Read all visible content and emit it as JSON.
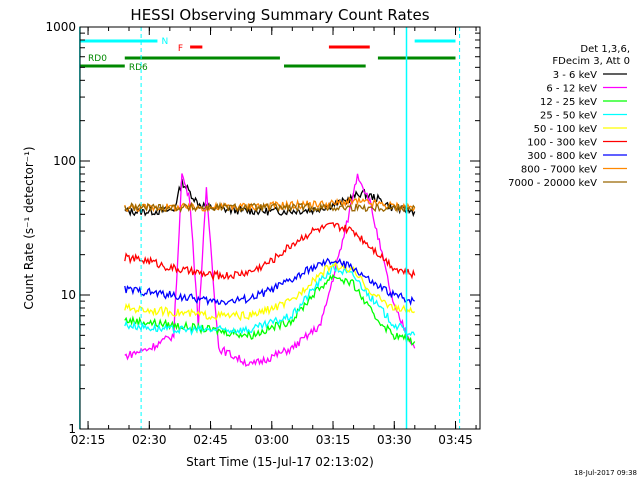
{
  "chart_data": {
    "type": "line",
    "title": "HESSI Observing Summary Count Rates",
    "xlabel": "Start Time (15-Jul-17 02:13:02)",
    "ylabel": "Count Rate (s⁻¹ detector⁻¹)",
    "y_scale": "log",
    "ylim": [
      1,
      1000
    ],
    "xlim": [
      "02:13:02",
      "03:51:00"
    ],
    "x_ticks": [
      "02:15",
      "02:30",
      "02:45",
      "03:00",
      "03:15",
      "03:30",
      "03:45"
    ],
    "y_ticks": [
      "1",
      "10",
      "100",
      "1000"
    ],
    "legend_header": [
      "Det 1,3,6,",
      "FDecim 3, Att 0"
    ],
    "legend_position": "right",
    "timestamp": "18-Jul-2017 09:38",
    "series": [
      {
        "name": "3 - 6 keV",
        "color": "#000000",
        "x": [
          "02:24",
          "02:30",
          "02:36",
          "02:38",
          "02:42",
          "02:45",
          "02:50",
          "03:00",
          "03:10",
          "03:18",
          "03:22",
          "03:26",
          "03:30",
          "03:35"
        ],
        "y": [
          42,
          42,
          43,
          70,
          48,
          45,
          43,
          42,
          43,
          50,
          58,
          52,
          44,
          42
        ]
      },
      {
        "name": "6 - 12 keV",
        "color": "#ff00ff",
        "x": [
          "02:24",
          "02:30",
          "02:36",
          "02:38",
          "02:40",
          "02:42",
          "02:44",
          "02:47",
          "02:55",
          "03:05",
          "03:12",
          "03:18",
          "03:21",
          "03:24",
          "03:30",
          "03:35"
        ],
        "y": [
          3.5,
          4,
          5,
          80,
          50,
          6,
          60,
          4,
          3,
          4,
          6,
          30,
          80,
          50,
          8,
          4
        ]
      },
      {
        "name": "12 - 25 keV",
        "color": "#00ff00",
        "x": [
          "02:24",
          "02:35",
          "02:45",
          "02:55",
          "03:05",
          "03:10",
          "03:15",
          "03:20",
          "03:25",
          "03:30",
          "03:35"
        ],
        "y": [
          6.5,
          6,
          5.5,
          5,
          6.5,
          10,
          14,
          12,
          7,
          5,
          4.5
        ]
      },
      {
        "name": "25 - 50 keV",
        "color": "#00ffff",
        "x": [
          "02:24",
          "02:35",
          "02:45",
          "02:55",
          "03:05",
          "03:10",
          "03:15",
          "03:20",
          "03:25",
          "03:30",
          "03:35"
        ],
        "y": [
          6,
          5.5,
          5.5,
          5.5,
          7,
          11,
          16,
          14,
          9,
          6,
          5
        ]
      },
      {
        "name": "50 - 100 keV",
        "color": "#ffff00",
        "x": [
          "02:24",
          "02:35",
          "02:45",
          "02:55",
          "03:05",
          "03:10",
          "03:15",
          "03:20",
          "03:25",
          "03:30",
          "03:35"
        ],
        "y": [
          8,
          7.5,
          7,
          7,
          9,
          13,
          17,
          15,
          10,
          8,
          7.5
        ]
      },
      {
        "name": "100 - 300 keV",
        "color": "#ff0000",
        "x": [
          "02:24",
          "02:30",
          "02:35",
          "02:40",
          "02:45",
          "02:50",
          "02:55",
          "03:00",
          "03:05",
          "03:10",
          "03:15",
          "03:20",
          "03:25",
          "03:30",
          "03:35"
        ],
        "y": [
          19,
          18,
          16,
          15,
          14,
          14,
          15,
          18,
          24,
          30,
          33,
          30,
          22,
          16,
          14
        ]
      },
      {
        "name": "300 - 800 keV",
        "color": "#0000ff",
        "x": [
          "02:24",
          "02:30",
          "02:35",
          "02:40",
          "02:45",
          "02:50",
          "02:55",
          "03:00",
          "03:05",
          "03:10",
          "03:15",
          "03:20",
          "03:25",
          "03:30",
          "03:35"
        ],
        "y": [
          11,
          10.5,
          10,
          9.5,
          9,
          9,
          9.5,
          11,
          13,
          16,
          18,
          16,
          12,
          10,
          9
        ]
      },
      {
        "name": "800 - 7000 keV",
        "color": "#ff8800",
        "x": [
          "02:24",
          "02:35",
          "02:45",
          "02:55",
          "03:05",
          "03:15",
          "03:20",
          "03:25",
          "03:30",
          "03:35"
        ],
        "y": [
          45,
          45,
          45,
          46,
          47,
          48,
          50,
          48,
          46,
          45
        ]
      },
      {
        "name": "7000 - 20000 keV",
        "color": "#996600",
        "x": [
          "02:24",
          "02:35",
          "03:35"
        ],
        "y": [
          45,
          45,
          45
        ]
      }
    ],
    "status_bars": [
      {
        "label": "N",
        "color": "#00ffff",
        "segments": [
          [
            "02:13",
            "02:32"
          ],
          [
            "03:35",
            "03:45"
          ]
        ]
      },
      {
        "label": "F",
        "color": "#ff0000",
        "segments": [
          [
            "02:40",
            "02:43"
          ],
          [
            "03:14",
            "03:24"
          ]
        ]
      },
      {
        "label": "RD0",
        "color": "#008800",
        "segments": [
          [
            "02:24",
            "03:02"
          ],
          [
            "03:26",
            "03:45"
          ]
        ]
      },
      {
        "label": "RD6",
        "color": "#008800",
        "segments": [
          [
            "02:13",
            "02:24"
          ],
          [
            "03:03",
            "03:23"
          ]
        ]
      }
    ],
    "vertical_markers": {
      "solid": [
        "02:13",
        "03:33"
      ],
      "dashed": [
        "02:28",
        "03:46"
      ],
      "color": "#00ffff"
    }
  }
}
